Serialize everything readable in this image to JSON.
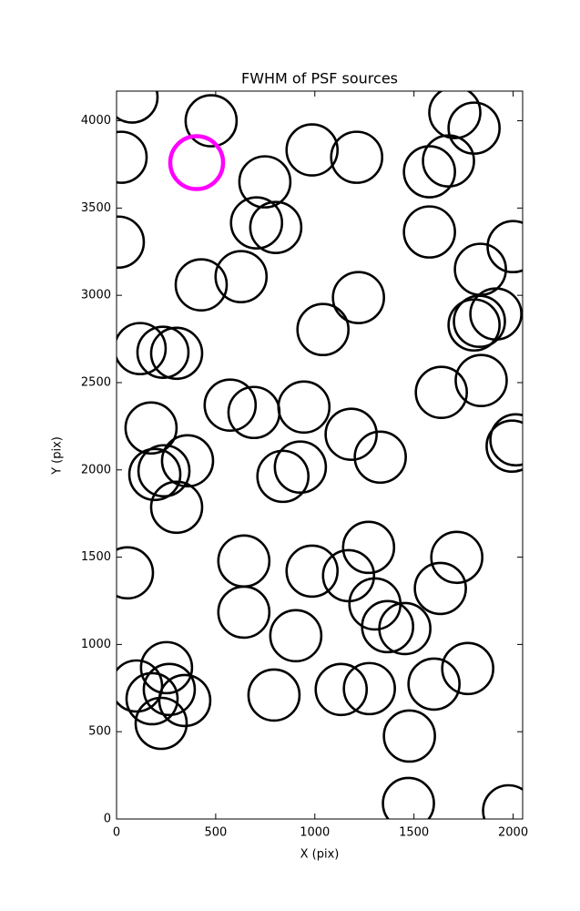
{
  "chart_data": {
    "type": "scatter",
    "title": "FWHM of PSF sources",
    "x_label": "X (pix)",
    "y_label": "Y (pix)",
    "xlim": [
      0,
      2048
    ],
    "ylim": [
      0,
      4170
    ],
    "xticks": [
      0,
      500,
      1000,
      1500,
      2000
    ],
    "yticks": [
      0,
      500,
      1000,
      1500,
      2000,
      2500,
      3000,
      3500,
      4000
    ],
    "series": [
      {
        "color": "#000000",
        "x": [
          78,
          477,
          23,
          748,
          986,
          1211,
          706,
          803,
          9,
          427,
          628,
          1041,
          1220,
          119,
          234,
          303,
          174,
          573,
          693,
          945,
          1183,
          1330,
          193,
          239,
          358,
          303,
          839,
          927,
          1706,
          1803,
          1578,
          1674,
          1578,
          1835,
          2000,
          1803,
          1830,
          1913,
          1638,
          1839,
          1995,
          2014,
          55,
          642,
          642,
          904,
          986,
          1170,
          1271,
          1303,
          1367,
          1454,
          1633,
          1716,
          101,
          179,
          252,
          266,
          344,
          225,
          794,
          1133,
          1275,
          1601,
          1771,
          1477,
          1472,
          1977
        ],
        "y": [
          4136,
          4000,
          3791,
          3650,
          3833,
          3791,
          3415,
          3389,
          3305,
          3060,
          3107,
          2804,
          2987,
          2695,
          2674,
          2668,
          2240,
          2371,
          2329,
          2360,
          2204,
          2073,
          1974,
          1995,
          2052,
          1786,
          1963,
          2016,
          4047,
          3958,
          3708,
          3770,
          3363,
          3149,
          3279,
          2830,
          2851,
          2893,
          2444,
          2512,
          2136,
          2172,
          1410,
          1478,
          1185,
          1050,
          1420,
          1394,
          1556,
          1232,
          1102,
          1091,
          1321,
          1499,
          762,
          689,
          867,
          742,
          679,
          548,
          710,
          742,
          747,
          773,
          862,
          475,
          89,
          47
        ]
      },
      {
        "color": "#ff00ff",
        "x": [
          404
        ],
        "y": [
          3760
        ]
      }
    ]
  }
}
